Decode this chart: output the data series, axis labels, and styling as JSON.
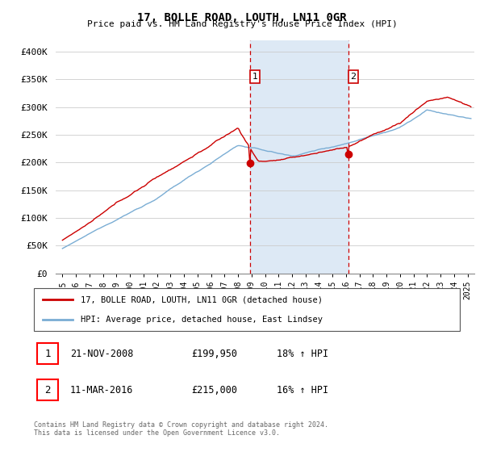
{
  "title": "17, BOLLE ROAD, LOUTH, LN11 0GR",
  "subtitle": "Price paid vs. HM Land Registry's House Price Index (HPI)",
  "ylabel_ticks": [
    "£0",
    "£50K",
    "£100K",
    "£150K",
    "£200K",
    "£250K",
    "£300K",
    "£350K",
    "£400K"
  ],
  "ytick_values": [
    0,
    50000,
    100000,
    150000,
    200000,
    250000,
    300000,
    350000,
    400000
  ],
  "ylim": [
    0,
    420000
  ],
  "xlim_start": 1994.5,
  "xlim_end": 2025.5,
  "hpi_color": "#7aadd4",
  "price_color": "#cc0000",
  "shading_color": "#dde9f5",
  "dashed_line_color": "#cc0000",
  "marker1_date": 2008.9,
  "marker2_date": 2016.17,
  "marker1_price": 199950,
  "marker2_price": 215000,
  "transaction1_label": "1",
  "transaction2_label": "2",
  "legend_line1": "17, BOLLE ROAD, LOUTH, LN11 0GR (detached house)",
  "legend_line2": "HPI: Average price, detached house, East Lindsey",
  "table_row1": [
    "1",
    "21-NOV-2008",
    "£199,950",
    "18% ↑ HPI"
  ],
  "table_row2": [
    "2",
    "11-MAR-2016",
    "£215,000",
    "16% ↑ HPI"
  ],
  "copyright_text": "Contains HM Land Registry data © Crown copyright and database right 2024.\nThis data is licensed under the Open Government Licence v3.0.",
  "xtick_labels": [
    "1995",
    "1996",
    "1997",
    "1998",
    "1999",
    "2000",
    "2001",
    "2002",
    "2003",
    "2004",
    "2005",
    "2006",
    "2007",
    "2008",
    "2009",
    "2010",
    "2011",
    "2012",
    "2013",
    "2014",
    "2015",
    "2016",
    "2017",
    "2018",
    "2019",
    "2020",
    "2021",
    "2022",
    "2023",
    "2024",
    "2025"
  ],
  "xtick_positions": [
    1995,
    1996,
    1997,
    1998,
    1999,
    2000,
    2001,
    2002,
    2003,
    2004,
    2005,
    2006,
    2007,
    2008,
    2009,
    2010,
    2011,
    2012,
    2013,
    2014,
    2015,
    2016,
    2017,
    2018,
    2019,
    2020,
    2021,
    2022,
    2023,
    2024,
    2025
  ]
}
